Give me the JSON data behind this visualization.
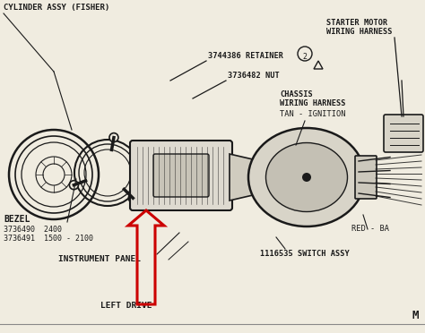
{
  "bg_color": "#f0ece0",
  "line_color": "#1a1a1a",
  "red_color": "#cc0000",
  "title_text": "CYLINDER ASSY (FISHER)",
  "labels": {
    "retainer": "3744386 RETAINER",
    "nut": "3736482 NUT",
    "bezel": "BEZEL",
    "bezel_num1": "3736490  2400",
    "bezel_num2": "3736491  1500 - 2100",
    "instrument_panel": "INSTRUMENT PANEL",
    "left_drive": "LEFT DRIVE",
    "chassis_line1": "CHASSIS",
    "chassis_line2": "WIRING HARNESS",
    "tan_ignition": "TAN - IGNITION",
    "starter_line1": "STARTER MOTOR",
    "starter_line2": "WIRING HARNESS",
    "switch_assy": "1116535 SWITCH ASSY",
    "red_ba": "RED - BA"
  },
  "figsize": [
    4.74,
    3.72
  ],
  "dpi": 100
}
